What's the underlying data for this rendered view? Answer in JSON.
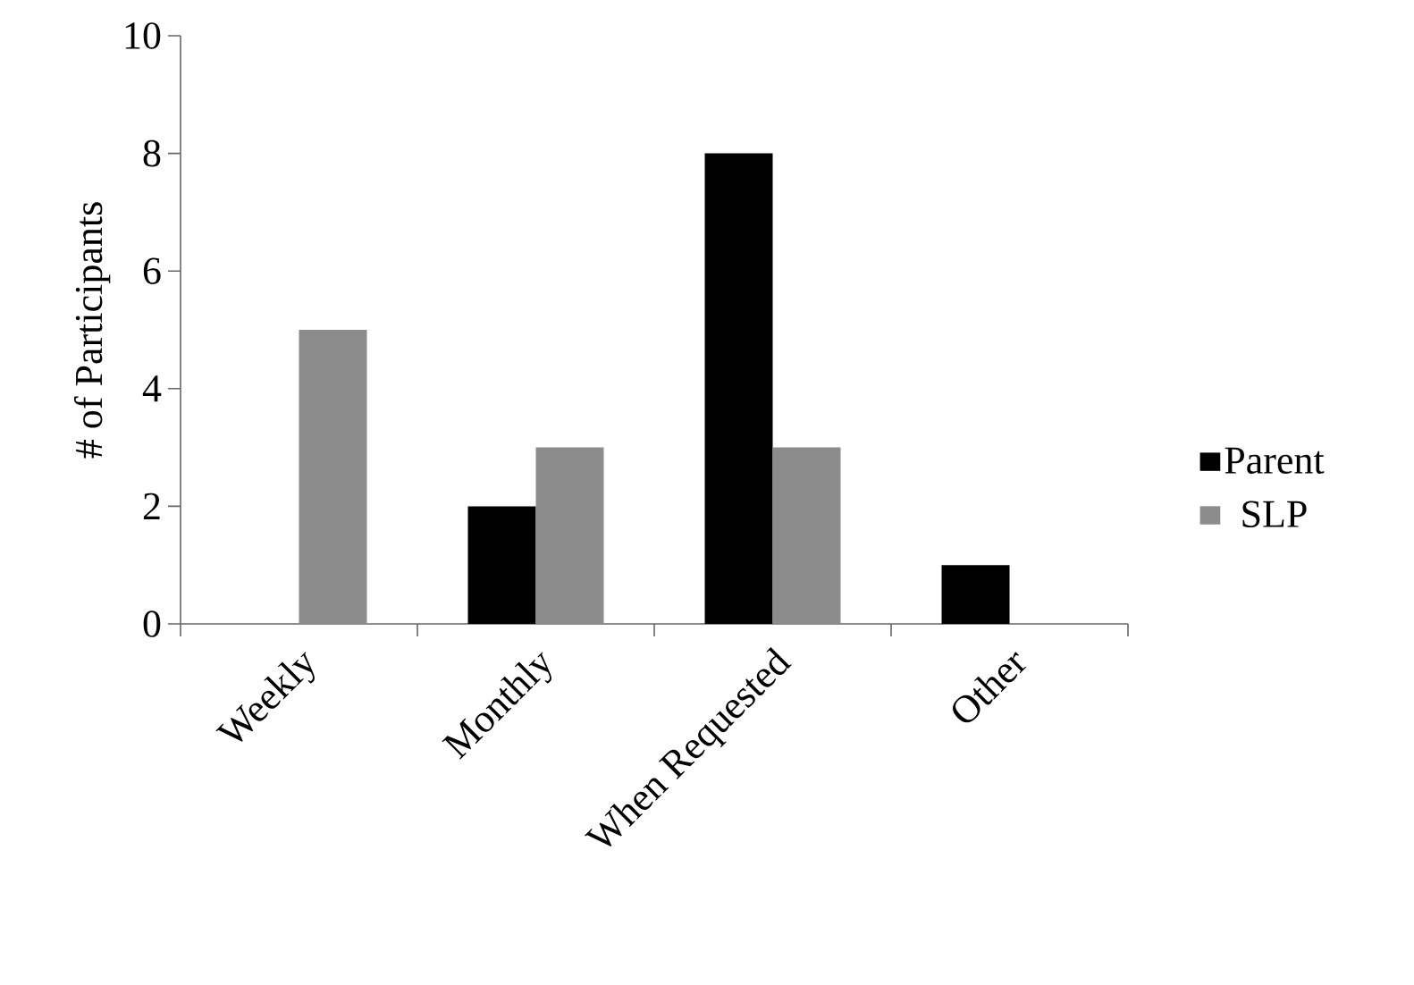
{
  "chart_data": {
    "type": "bar",
    "ylabel": "# of Participants",
    "categories": [
      "Weekly",
      "Monthly",
      "When Requested",
      "Other"
    ],
    "series": [
      {
        "name": "Parent",
        "color": "#000000",
        "values": [
          0,
          2,
          8,
          1
        ]
      },
      {
        "name": "SLP",
        "color": "#8c8c8c",
        "values": [
          5,
          3,
          3,
          0
        ]
      }
    ],
    "ylim": [
      0,
      10
    ],
    "yticks": [
      0,
      2,
      4,
      6,
      8,
      10
    ],
    "grid": false,
    "legend": "right"
  }
}
